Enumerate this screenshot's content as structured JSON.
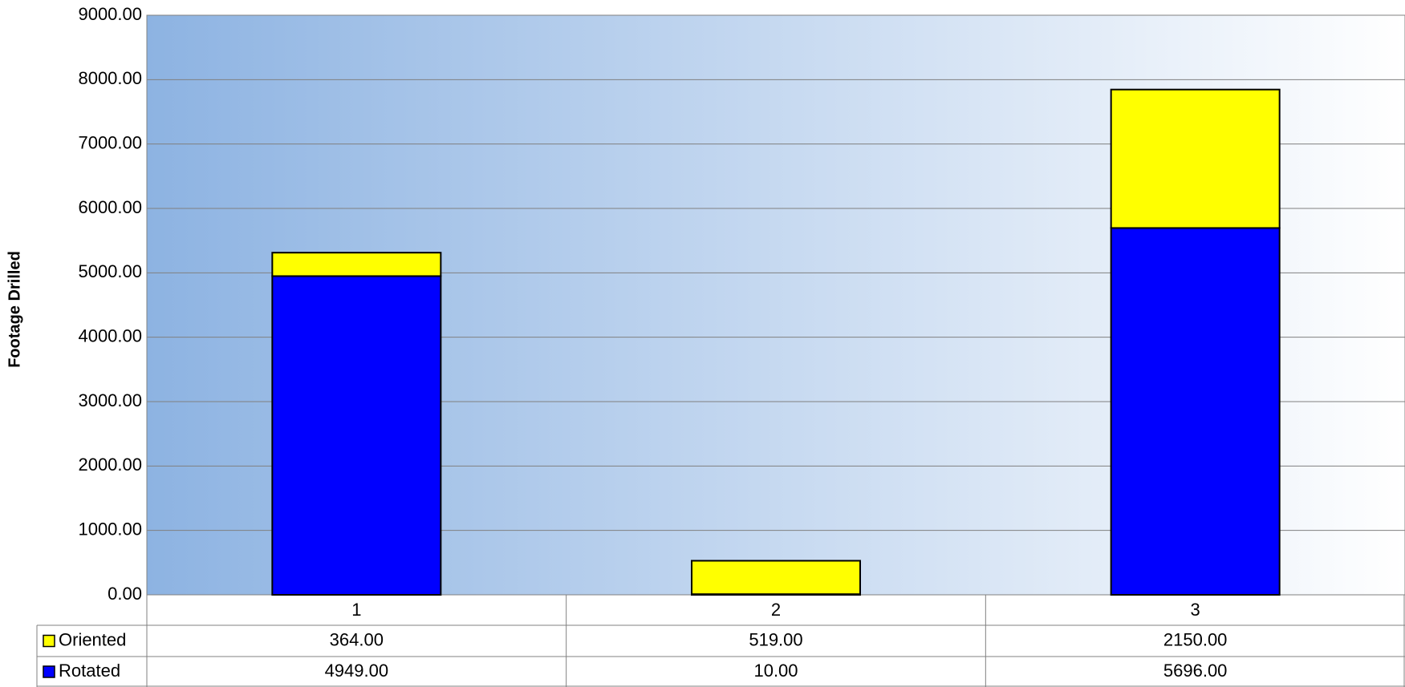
{
  "chart_data": {
    "type": "stacked_bar",
    "y_label": "Footage Drilled",
    "categories": [
      "1",
      "2",
      "3"
    ],
    "series": [
      {
        "name": "Rotated",
        "color": "#0000ff",
        "values": [
          4949,
          10,
          5696
        ],
        "value_labels": [
          "4949.00",
          "10.00",
          "5696.00"
        ]
      },
      {
        "name": "Oriented",
        "color": "#ffff00",
        "values": [
          364,
          519,
          2150
        ],
        "value_labels": [
          "364.00",
          "519.00",
          "2150.00"
        ]
      }
    ],
    "ylim": [
      0,
      9000
    ],
    "yticks": [
      {
        "value": 0,
        "label": "0.00"
      },
      {
        "value": 1000,
        "label": "1000.00"
      },
      {
        "value": 2000,
        "label": "2000.00"
      },
      {
        "value": 3000,
        "label": "3000.00"
      },
      {
        "value": 4000,
        "label": "4000.00"
      },
      {
        "value": 5000,
        "label": "5000.00"
      },
      {
        "value": 6000,
        "label": "6000.00"
      },
      {
        "value": 7000,
        "label": "7000.00"
      },
      {
        "value": 8000,
        "label": "8000.00"
      },
      {
        "value": 9000,
        "label": "9000.00"
      }
    ],
    "grid": true
  }
}
